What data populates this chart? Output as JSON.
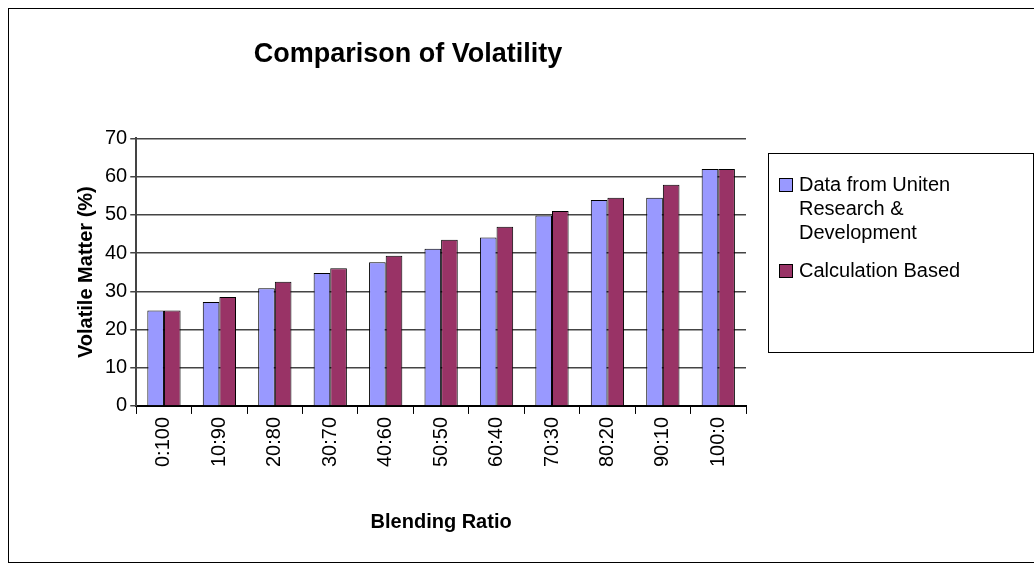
{
  "chart_data": {
    "type": "bar",
    "title": "Comparison of Volatility",
    "xlabel": "Blending Ratio",
    "ylabel": "Volatile Matter (%)",
    "categories": [
      "0:100",
      "10:90",
      "20:80",
      "30:70",
      "40:60",
      "50:50",
      "60:40",
      "70:30",
      "80:20",
      "90:10",
      "100:0"
    ],
    "series": [
      {
        "name": "Data from Uniten Research & Development",
        "color": "#9999ff",
        "values": [
          25,
          27.2,
          30.8,
          34.8,
          37.6,
          41.1,
          44.1,
          49.8,
          53.9,
          54.5,
          62
        ]
      },
      {
        "name": "Calculation Based",
        "color": "#993366",
        "values": [
          25,
          28.5,
          32.5,
          36,
          39.3,
          43.5,
          46.9,
          51,
          54.5,
          57.9,
          62
        ]
      }
    ],
    "ylim": [
      0,
      70
    ],
    "yticks": [
      0,
      10,
      20,
      30,
      40,
      50,
      60,
      70
    ],
    "grid": "y",
    "legend": "right"
  }
}
